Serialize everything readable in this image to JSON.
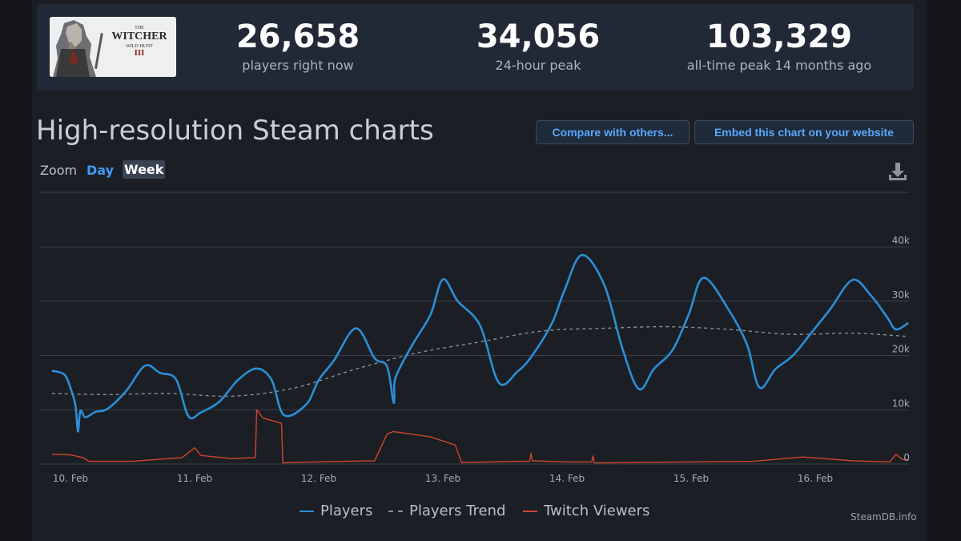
{
  "stats": {
    "current": {
      "value": "26,658",
      "label": "players right now"
    },
    "peak24": {
      "value": "34,056",
      "label": "24-hour peak"
    },
    "alltime": {
      "value": "103,329",
      "label": "all-time peak 14 months ago"
    }
  },
  "game_logo": {
    "line1": "THE",
    "line2": "WITCHER",
    "line3": "WILD HUNT",
    "roman": "III"
  },
  "header": {
    "title": "High-resolution Steam charts",
    "compare_button": "Compare with others...",
    "embed_button": "Embed this chart on your website"
  },
  "zoom": {
    "label": "Zoom",
    "day": "Day",
    "week": "Week"
  },
  "credit": "SteamDB.info",
  "colors": {
    "players": "#2b8fd6",
    "trend": "#8a8f96",
    "twitch": "#d0452d",
    "grid": "#3a3f48",
    "tick": "#a3acb5"
  },
  "chart_data": {
    "type": "line",
    "x_range": [
      "2025-02-09T21:00",
      "2025-02-16T18:00"
    ],
    "xticks": [
      "10. Feb",
      "11. Feb",
      "12. Feb",
      "13. Feb",
      "14. Feb",
      "15. Feb",
      "16. Feb"
    ],
    "xtick_days": [
      0,
      1,
      2,
      3,
      4,
      5,
      6
    ],
    "ylim": [
      0,
      40000
    ],
    "yticks": [
      0,
      10000,
      20000,
      30000,
      40000
    ],
    "ytick_labels": [
      "0",
      "10k",
      "20k",
      "30k",
      "40k"
    ],
    "grid": true,
    "legend": "bottom-center",
    "series": [
      {
        "name": "Players",
        "x_days": [
          -0.15,
          -0.05,
          0.0,
          0.04,
          0.06,
          0.08,
          0.12,
          0.2,
          0.3,
          0.45,
          0.6,
          0.72,
          0.85,
          0.95,
          1.05,
          1.2,
          1.35,
          1.5,
          1.62,
          1.72,
          1.9,
          2.0,
          2.12,
          2.3,
          2.45,
          2.55,
          2.6,
          2.61,
          2.62,
          2.75,
          2.9,
          3.0,
          3.12,
          3.3,
          3.45,
          3.6,
          3.72,
          3.88,
          3.98,
          4.12,
          4.3,
          4.45,
          4.58,
          4.7,
          4.85,
          4.98,
          5.1,
          5.3,
          5.45,
          5.55,
          5.68,
          5.82,
          5.98,
          6.12,
          6.3,
          6.45,
          6.58,
          6.65,
          6.75
        ],
        "values": [
          17200,
          16500,
          14000,
          10800,
          6000,
          9800,
          8600,
          9600,
          10200,
          13500,
          18100,
          16800,
          15600,
          8800,
          9500,
          11500,
          15500,
          17600,
          15500,
          9000,
          11000,
          15500,
          19000,
          25000,
          19500,
          18000,
          11600,
          12500,
          16000,
          21800,
          27500,
          34000,
          30000,
          25500,
          15000,
          17000,
          20000,
          26000,
          32000,
          38500,
          33000,
          21000,
          13800,
          17500,
          21000,
          27500,
          34300,
          28500,
          22000,
          14100,
          17500,
          20000,
          24500,
          28500,
          33900,
          31000,
          27000,
          24800,
          26000
        ]
      },
      {
        "name": "Players Trend",
        "x_days": [
          -0.15,
          0.3,
          0.8,
          1.3,
          1.8,
          2.3,
          2.8,
          3.3,
          3.8,
          4.3,
          4.8,
          5.3,
          5.8,
          6.3,
          6.75
        ],
        "values": [
          13000,
          12800,
          13000,
          12500,
          14000,
          17500,
          20500,
          22500,
          24500,
          25000,
          25300,
          24800,
          23900,
          24100,
          23500
        ]
      },
      {
        "name": "Twitch Viewers",
        "x_days": [
          -0.15,
          0.0,
          0.1,
          0.15,
          0.5,
          0.9,
          1.0,
          1.05,
          1.3,
          1.49,
          1.5,
          1.55,
          1.7,
          1.71,
          1.8,
          2.2,
          2.45,
          2.55,
          2.6,
          2.9,
          3.1,
          3.15,
          3.2,
          3.6,
          3.7,
          3.71,
          3.72,
          4.0,
          4.2,
          4.21,
          4.22,
          4.6,
          5.0,
          5.5,
          5.9,
          6.3,
          6.6,
          6.65,
          6.7,
          6.75
        ],
        "values": [
          1800,
          1700,
          1200,
          500,
          500,
          1200,
          3000,
          1600,
          1000,
          1200,
          10000,
          8500,
          7500,
          200,
          300,
          500,
          600,
          5500,
          6000,
          5000,
          3500,
          300,
          300,
          500,
          500,
          2000,
          600,
          400,
          400,
          1500,
          200,
          300,
          400,
          500,
          1300,
          600,
          400,
          1800,
          900,
          700
        ]
      }
    ]
  }
}
